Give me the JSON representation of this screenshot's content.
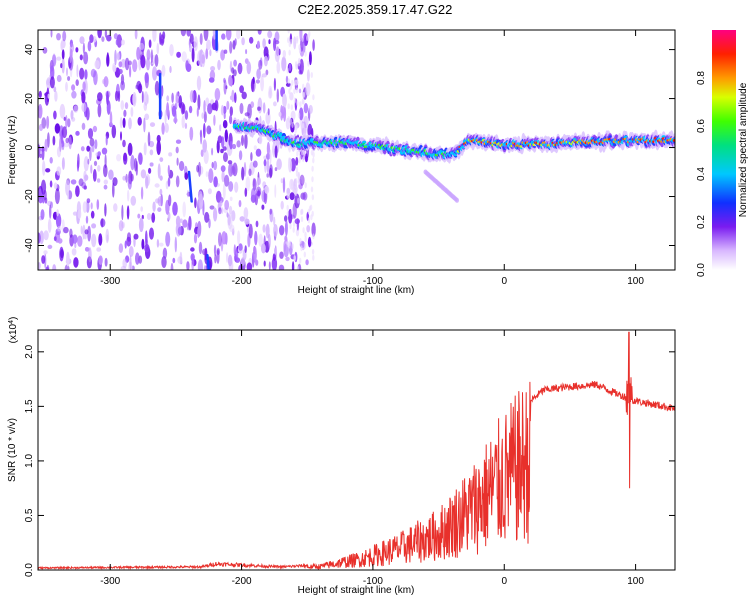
{
  "title": "C2E2.2025.359.17.47.G22",
  "chart_data": [
    {
      "type": "heatmap",
      "xlabel": "Height of straight line (km)",
      "ylabel": "Frequency (Hz)",
      "xlim": [
        -355,
        130
      ],
      "ylim": [
        -50,
        48
      ],
      "xticks": [
        -300,
        -200,
        -100,
        0,
        100
      ],
      "yticks": [
        -40,
        -20,
        0,
        20,
        40
      ],
      "noise_region_km": [
        -355,
        -160
      ],
      "ridge": {
        "description_points": [
          {
            "x": -205,
            "f": 9
          },
          {
            "x": -190,
            "f": 8
          },
          {
            "x": -160,
            "f": 2
          },
          {
            "x": -120,
            "f": 2
          },
          {
            "x": -90,
            "f": 0
          },
          {
            "x": -60,
            "f": -2
          },
          {
            "x": -40,
            "f": -3
          },
          {
            "x": -25,
            "f": 3
          },
          {
            "x": 0,
            "f": 1
          },
          {
            "x": 50,
            "f": 2
          },
          {
            "x": 100,
            "f": 3
          },
          {
            "x": 130,
            "f": 3
          }
        ],
        "branch": [
          {
            "x": -60,
            "f": -10
          },
          {
            "x": -35,
            "f": -22
          }
        ]
      },
      "colorbar": {
        "label": "Normalized spectral amplitude",
        "range": [
          0,
          1
        ],
        "ticks": [
          "0.0",
          "0.2",
          "0.4",
          "0.6",
          "0.8"
        ]
      }
    },
    {
      "type": "line",
      "xlabel": "Height of straight line (km)",
      "ylabel": "SNR (10 * v/v)",
      "multiplier": "(x10^4)",
      "xlim": [
        -355,
        130
      ],
      "ylim": [
        0,
        2.2
      ],
      "xticks": [
        -300,
        -200,
        -100,
        0,
        100
      ],
      "yticks": [
        "0.0",
        "0.5",
        "1.0",
        "1.5",
        "2.0"
      ],
      "series": [
        {
          "name": "SNR",
          "color": "#e8302b",
          "envelope": [
            {
              "x": -355,
              "y": 0.02
            },
            {
              "x": -230,
              "y": 0.03
            },
            {
              "x": -220,
              "y": 0.06
            },
            {
              "x": -170,
              "y": 0.03
            },
            {
              "x": -140,
              "y": 0.05
            },
            {
              "x": -110,
              "y": 0.15
            },
            {
              "x": -80,
              "y": 0.3
            },
            {
              "x": -50,
              "y": 0.5
            },
            {
              "x": -25,
              "y": 0.85
            },
            {
              "x": -5,
              "y": 1.2
            },
            {
              "x": 15,
              "y": 1.5
            },
            {
              "x": 30,
              "y": 1.65
            },
            {
              "x": 50,
              "y": 1.68
            },
            {
              "x": 70,
              "y": 1.7
            },
            {
              "x": 85,
              "y": 1.62
            },
            {
              "x": 100,
              "y": 1.55
            },
            {
              "x": 130,
              "y": 1.48
            }
          ],
          "spike": {
            "x": 95,
            "high": 2.18,
            "low": 0.75
          }
        }
      ]
    }
  ]
}
